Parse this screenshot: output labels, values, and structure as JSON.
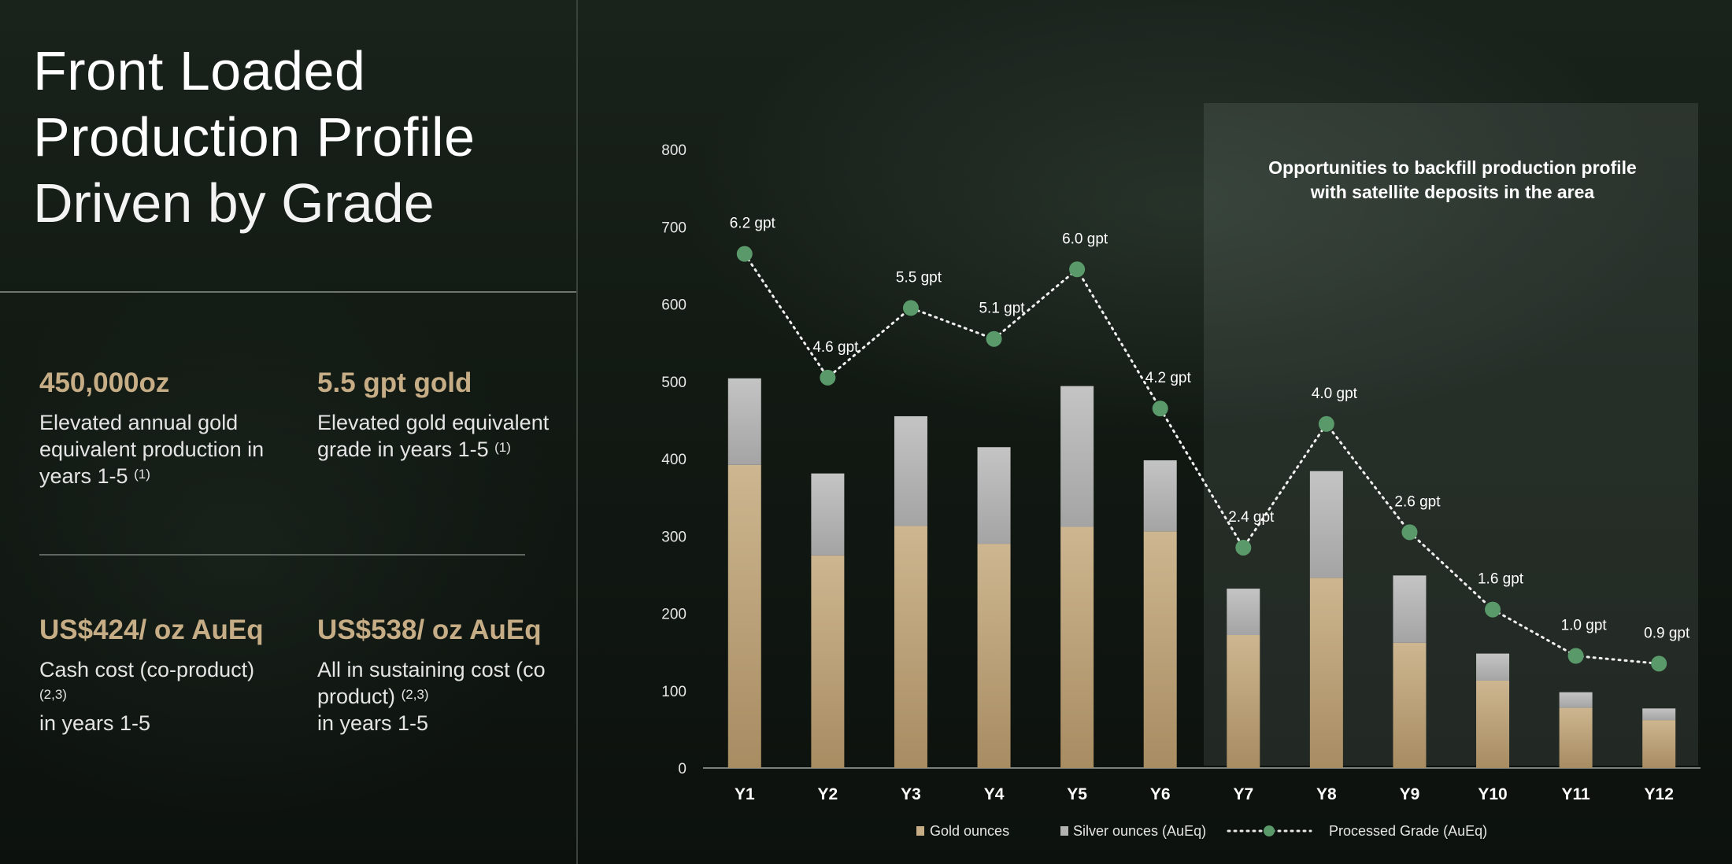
{
  "title": {
    "line1": "Front Loaded",
    "line2": "Production Profile",
    "line3": "Driven by Grade"
  },
  "kpis": [
    {
      "value": "450,000oz",
      "desc": "Elevated annual gold equivalent production in years 1-5",
      "sup": "(1)"
    },
    {
      "value": "5.5 gpt gold",
      "desc": "Elevated gold equivalent grade in years 1-5",
      "sup": "(1)"
    },
    {
      "value": "US$424/ oz AuEq",
      "desc_a": "Cash cost (co-product)",
      "sup": "(2,3)",
      "desc_b": "in years 1-5"
    },
    {
      "value": "US$538/ oz AuEq",
      "desc_a": "All in sustaining cost (co product)",
      "sup": "(2,3)",
      "desc_b": "in years 1-5"
    }
  ],
  "annotation": "Opportunities to backfill production profile with satellite deposits in the area",
  "colors": {
    "gold": "#c6ad86",
    "silver": "#b3b3b3",
    "grade_marker": "#5a9a6a"
  },
  "chart_data": {
    "type": "bar",
    "categories": [
      "Y1",
      "Y2",
      "Y3",
      "Y4",
      "Y5",
      "Y6",
      "Y7",
      "Y8",
      "Y9",
      "Y10",
      "Y11",
      "Y12"
    ],
    "ylim": [
      0,
      800
    ],
    "yticks": [
      0,
      100,
      200,
      300,
      400,
      500,
      600,
      700,
      800
    ],
    "series": [
      {
        "name": "Gold ounces",
        "values": [
          392,
          275,
          313,
          290,
          312,
          306,
          172,
          246,
          162,
          113,
          78,
          62
        ]
      },
      {
        "name": "Silver ounces (AuEq)",
        "values": [
          112,
          106,
          142,
          125,
          182,
          92,
          60,
          138,
          87,
          35,
          20,
          15
        ]
      }
    ],
    "grade": {
      "name": "Processed Grade (AuEq)",
      "values": [
        6.2,
        4.6,
        5.5,
        5.1,
        6.0,
        4.2,
        2.4,
        4.0,
        2.6,
        1.6,
        1.0,
        0.9
      ],
      "labels": [
        "6.2 gpt",
        "4.6 gpt",
        "5.5 gpt",
        "5.1 gpt",
        "6.0 gpt",
        "4.2 gpt",
        "2.4 gpt",
        "4.0 gpt",
        "2.6 gpt",
        "1.6 gpt",
        "1.0 gpt",
        "0.9 gpt"
      ]
    },
    "legend_position": "bottom"
  }
}
